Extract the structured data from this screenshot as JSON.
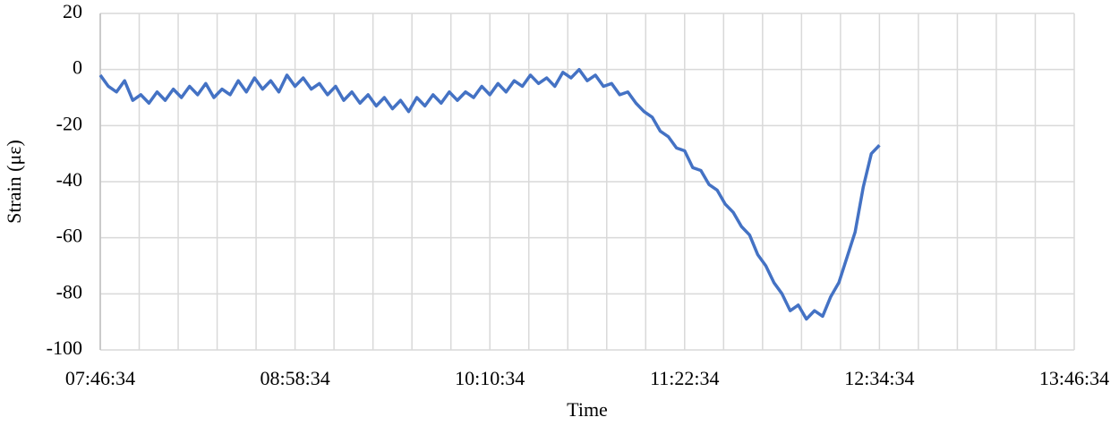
{
  "chart_data": {
    "type": "line",
    "x_label": "Time",
    "y_label": "Strain (με)",
    "x": [
      "07:46:34",
      "07:49:34",
      "07:52:34",
      "07:55:34",
      "07:58:34",
      "08:01:34",
      "08:04:34",
      "08:07:34",
      "08:10:34",
      "08:13:34",
      "08:16:34",
      "08:19:34",
      "08:22:34",
      "08:25:34",
      "08:28:34",
      "08:31:34",
      "08:34:34",
      "08:37:34",
      "08:40:34",
      "08:43:34",
      "08:46:34",
      "08:49:34",
      "08:52:34",
      "08:55:34",
      "08:58:34",
      "09:01:34",
      "09:04:34",
      "09:07:34",
      "09:10:34",
      "09:13:34",
      "09:16:34",
      "09:19:34",
      "09:22:34",
      "09:25:34",
      "09:28:34",
      "09:31:34",
      "09:34:34",
      "09:37:34",
      "09:40:34",
      "09:43:34",
      "09:46:34",
      "09:49:34",
      "09:52:34",
      "09:55:34",
      "09:58:34",
      "10:01:34",
      "10:04:34",
      "10:07:34",
      "10:10:34",
      "10:13:34",
      "10:16:34",
      "10:19:34",
      "10:22:34",
      "10:25:34",
      "10:28:34",
      "10:31:34",
      "10:34:34",
      "10:37:34",
      "10:40:34",
      "10:43:34",
      "10:46:34",
      "10:49:34",
      "10:52:34",
      "10:55:34",
      "10:58:34",
      "11:01:34",
      "11:04:34",
      "11:07:34",
      "11:10:34",
      "11:13:34",
      "11:16:34",
      "11:19:34",
      "11:22:34",
      "11:25:34",
      "11:28:34",
      "11:31:34",
      "11:34:34",
      "11:37:34",
      "11:40:34",
      "11:43:34",
      "11:46:34",
      "11:49:34",
      "11:52:34",
      "11:55:34",
      "11:58:34",
      "12:01:34",
      "12:04:34",
      "12:07:34",
      "12:10:34",
      "12:13:34",
      "12:16:34",
      "12:19:34",
      "12:22:34",
      "12:25:34",
      "12:28:34",
      "12:31:34",
      "12:34:34"
    ],
    "values": [
      -2,
      -6,
      -8,
      -4,
      -11,
      -9,
      -12,
      -8,
      -11,
      -7,
      -10,
      -6,
      -9,
      -5,
      -10,
      -7,
      -9,
      -4,
      -8,
      -3,
      -7,
      -4,
      -8,
      -2,
      -6,
      -3,
      -7,
      -5,
      -9,
      -6,
      -11,
      -8,
      -12,
      -9,
      -13,
      -10,
      -14,
      -11,
      -15,
      -10,
      -13,
      -9,
      -12,
      -8,
      -11,
      -8,
      -10,
      -6,
      -9,
      -5,
      -8,
      -4,
      -6,
      -2,
      -5,
      -3,
      -6,
      -1,
      -3,
      0,
      -4,
      -2,
      -6,
      -5,
      -9,
      -8,
      -12,
      -15,
      -17,
      -22,
      -24,
      -28,
      -29,
      -35,
      -36,
      -41,
      -43,
      -48,
      -51,
      -56,
      -59,
      -66,
      -70,
      -76,
      -80,
      -86,
      -84,
      -89,
      -86,
      -88,
      -81,
      -76,
      -67,
      -58,
      -42,
      -30,
      -27
    ],
    "color": "#4472c4",
    "xlim": [
      "07:46:34",
      "13:46:34"
    ],
    "xticks": [
      "07:46:34",
      "08:58:34",
      "10:10:34",
      "11:22:34",
      "12:34:34",
      "13:46:34"
    ],
    "x_grid_divisions": 5,
    "ylim": [
      -100,
      20
    ],
    "yticks": [
      -100,
      -80,
      -60,
      -40,
      -20,
      0,
      20
    ],
    "grid": true
  }
}
